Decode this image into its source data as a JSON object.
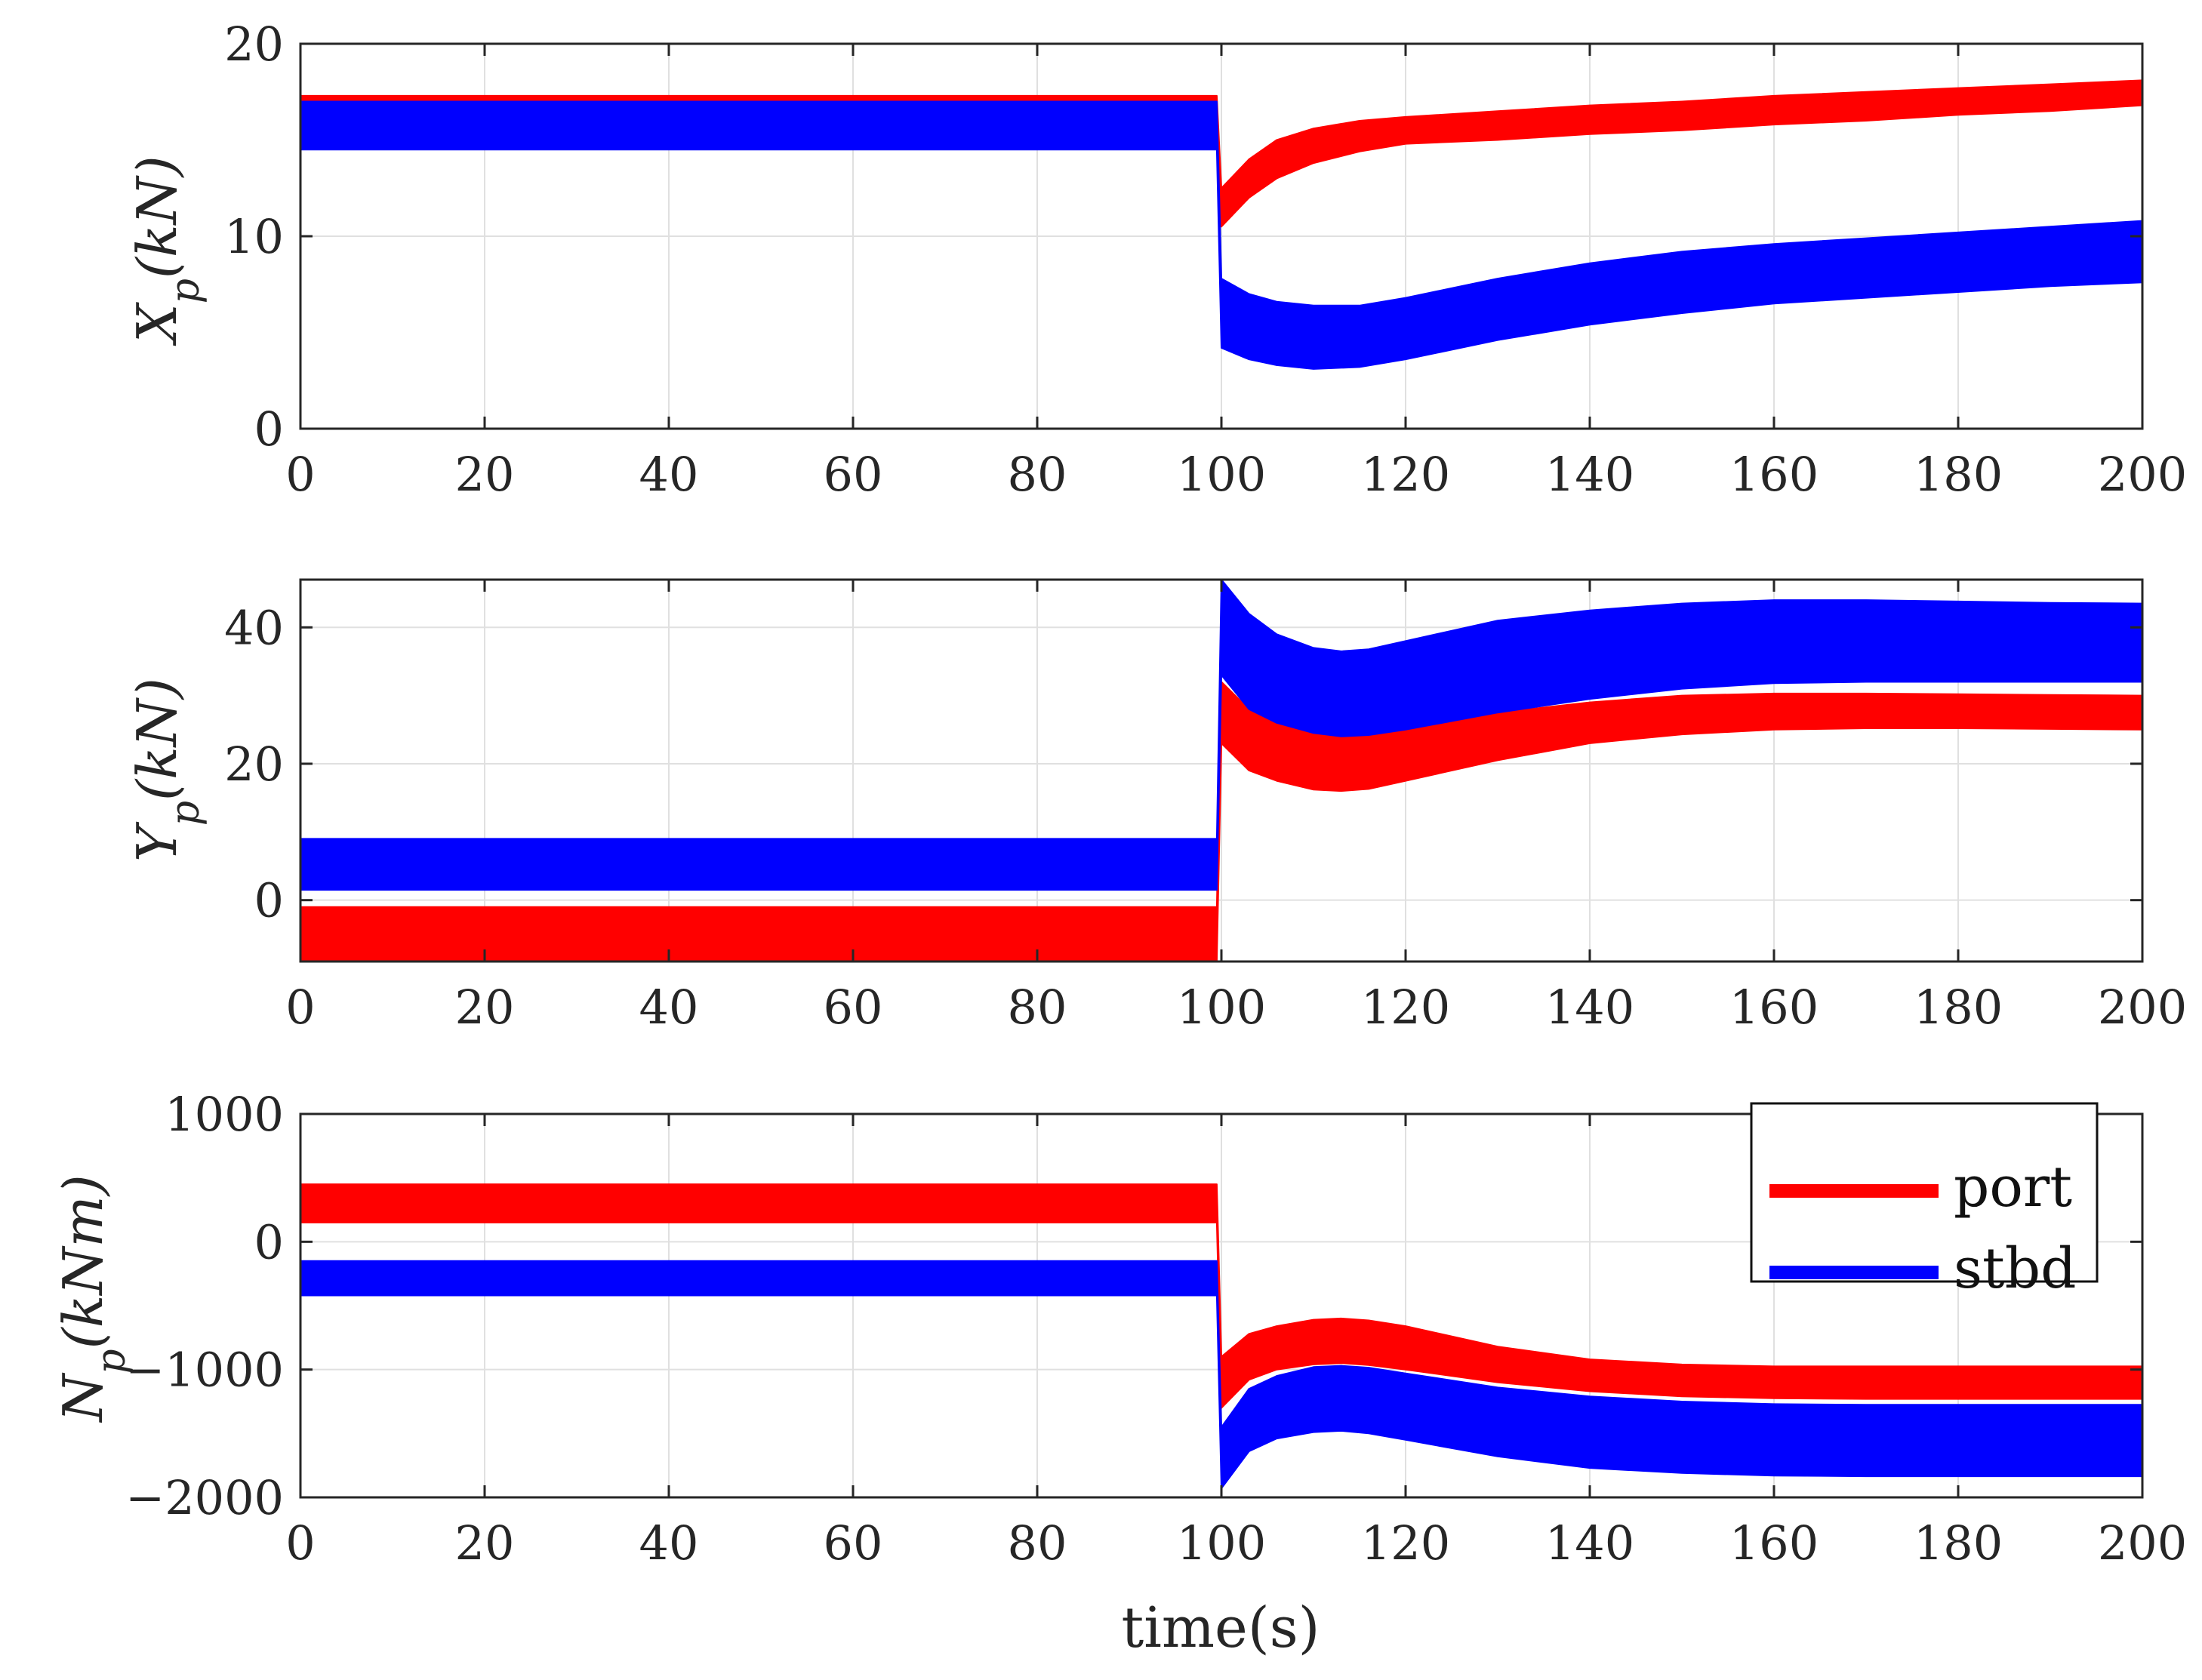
{
  "chart_data": [
    {
      "type": "line",
      "ylabel": "X_p(kN)",
      "xlim": [
        0,
        200
      ],
      "ylim": [
        0,
        20
      ],
      "xticks": [
        "0",
        "20",
        "40",
        "60",
        "80",
        "100",
        "120",
        "140",
        "160",
        "180",
        "200"
      ],
      "yticks": [
        "0",
        "10",
        "20"
      ],
      "grid": true,
      "series": [
        {
          "name": "port",
          "color": "#ff0000",
          "kind": "band",
          "x": [
            0,
            99.5,
            100,
            103,
            106,
            110,
            115,
            120,
            130,
            140,
            150,
            160,
            170,
            180,
            190,
            200
          ],
          "upper": [
            17.3,
            17.3,
            12.5,
            14.0,
            15.0,
            15.6,
            16.0,
            16.2,
            16.5,
            16.8,
            17.0,
            17.3,
            17.5,
            17.7,
            17.9,
            18.1
          ],
          "lower": [
            16.3,
            16.3,
            10.5,
            12.0,
            13.0,
            13.8,
            14.4,
            14.8,
            15.0,
            15.3,
            15.5,
            15.8,
            16.0,
            16.3,
            16.5,
            16.8
          ]
        },
        {
          "name": "stbd",
          "color": "#0000ff",
          "kind": "band",
          "x": [
            0,
            99.5,
            100,
            103,
            106,
            110,
            115,
            120,
            130,
            140,
            150,
            160,
            170,
            180,
            190,
            200
          ],
          "upper": [
            17.0,
            17.0,
            7.8,
            7.0,
            6.6,
            6.4,
            6.4,
            6.8,
            7.8,
            8.6,
            9.2,
            9.6,
            9.9,
            10.2,
            10.5,
            10.8
          ],
          "lower": [
            14.5,
            14.5,
            4.2,
            3.6,
            3.3,
            3.1,
            3.2,
            3.6,
            4.6,
            5.4,
            6.0,
            6.5,
            6.8,
            7.1,
            7.4,
            7.6
          ]
        }
      ]
    },
    {
      "type": "line",
      "ylabel": "Y_p(kN)",
      "xlim": [
        0,
        200
      ],
      "ylim": [
        -9,
        47
      ],
      "xticks": [
        "0",
        "20",
        "40",
        "60",
        "80",
        "100",
        "120",
        "140",
        "160",
        "180",
        "200"
      ],
      "yticks": [
        "0",
        "20",
        "40"
      ],
      "grid": true,
      "series": [
        {
          "name": "port",
          "color": "#ff0000",
          "kind": "band",
          "x": [
            0,
            99.5,
            100,
            103,
            106,
            110,
            113,
            116,
            120,
            130,
            140,
            150,
            160,
            170,
            180,
            190,
            200
          ],
          "upper": [
            -1,
            -1,
            32,
            28,
            26,
            24.5,
            24,
            24.2,
            25,
            27.5,
            29,
            30,
            30.3,
            30.3,
            30.2,
            30.1,
            30
          ],
          "lower": [
            -9,
            -9,
            23,
            19,
            17.5,
            16.2,
            16,
            16.3,
            17.5,
            20.5,
            23,
            24.3,
            25,
            25.2,
            25.2,
            25.1,
            25
          ]
        },
        {
          "name": "stbd",
          "color": "#0000ff",
          "kind": "band",
          "x": [
            0,
            99.5,
            100,
            103,
            106,
            110,
            113,
            116,
            120,
            130,
            140,
            150,
            160,
            170,
            180,
            190,
            200
          ],
          "upper": [
            9,
            9,
            47,
            42,
            39,
            37,
            36.5,
            36.8,
            38,
            41,
            42.5,
            43.5,
            44,
            44,
            43.8,
            43.6,
            43.5
          ],
          "lower": [
            1.5,
            1.5,
            33,
            28,
            26,
            24.5,
            24,
            24.2,
            25,
            27.5,
            29.5,
            31,
            31.8,
            32,
            32,
            32,
            32
          ]
        }
      ]
    },
    {
      "type": "line",
      "ylabel": "N_p(kNm)",
      "xlim": [
        0,
        200
      ],
      "ylim": [
        -2000,
        1000
      ],
      "xticks": [
        "0",
        "20",
        "40",
        "60",
        "80",
        "100",
        "120",
        "140",
        "160",
        "180",
        "200"
      ],
      "yticks": [
        "−2000",
        "−1000",
        "0",
        "1000"
      ],
      "xlabel": "time(s)",
      "grid": true,
      "series": [
        {
          "name": "port",
          "color": "#ff0000",
          "kind": "band",
          "x": [
            0,
            99.5,
            100,
            103,
            106,
            110,
            113,
            116,
            120,
            130,
            140,
            150,
            160,
            170,
            180,
            190,
            200
          ],
          "upper": [
            450,
            450,
            -900,
            -720,
            -660,
            -610,
            -600,
            -615,
            -660,
            -820,
            -920,
            -960,
            -975,
            -975,
            -975,
            -975,
            -975
          ],
          "lower": [
            150,
            150,
            -1300,
            -1080,
            -1000,
            -960,
            -950,
            -965,
            -1000,
            -1100,
            -1170,
            -1210,
            -1225,
            -1230,
            -1230,
            -1230,
            -1230
          ]
        },
        {
          "name": "stbd",
          "color": "#0000ff",
          "kind": "band",
          "x": [
            0,
            99.5,
            100,
            103,
            106,
            110,
            113,
            116,
            120,
            130,
            140,
            150,
            160,
            170,
            180,
            190,
            200
          ],
          "upper": [
            -150,
            -150,
            -1450,
            -1150,
            -1050,
            -980,
            -970,
            -985,
            -1030,
            -1140,
            -1210,
            -1250,
            -1270,
            -1275,
            -1275,
            -1275,
            -1275
          ],
          "lower": [
            -420,
            -420,
            -1930,
            -1640,
            -1540,
            -1490,
            -1480,
            -1500,
            -1550,
            -1680,
            -1770,
            -1810,
            -1830,
            -1835,
            -1835,
            -1835,
            -1835
          ]
        }
      ],
      "legend": {
        "placement": "top-right",
        "entries": [
          {
            "label": "port",
            "color": "#ff0000"
          },
          {
            "label": "stbd",
            "color": "#0000ff"
          }
        ]
      }
    }
  ]
}
